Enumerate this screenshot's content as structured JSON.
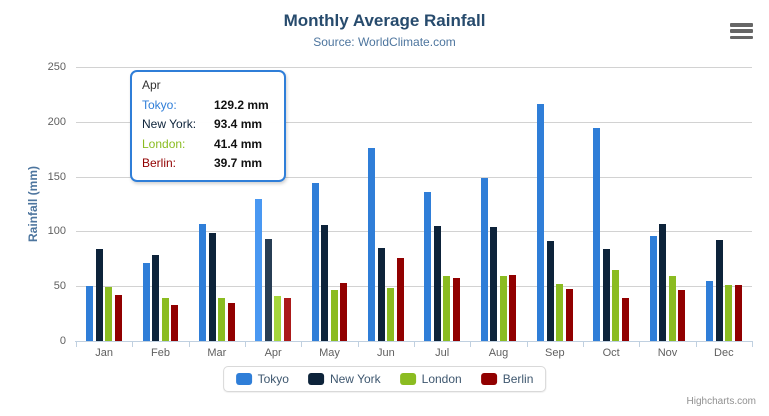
{
  "header": {
    "title": "Monthly Average Rainfall",
    "subtitle": "Source: WorldClimate.com"
  },
  "credits": "Highcharts.com",
  "context_menu_icon": "hamburger-icon",
  "colors": {
    "title": "#274b6d",
    "subtitle": "#4d759e",
    "axis_labels": "#606060",
    "gridline": "#d2d2d2",
    "axis_line": "#c0d0e0",
    "legend_text": "#3E576F",
    "tooltip_border": "#2f7ed8"
  },
  "chart_data": {
    "type": "bar",
    "title": "Monthly Average Rainfall",
    "subtitle": "Source: WorldClimate.com",
    "xlabel": "",
    "ylabel": "Rainfall (mm)",
    "ylim": [
      0,
      250
    ],
    "ytick_interval": 50,
    "yticks": [
      "0",
      "50",
      "100",
      "150",
      "200",
      "250"
    ],
    "grid": true,
    "legend_position": "bottom",
    "categories": [
      "Jan",
      "Feb",
      "Mar",
      "Apr",
      "May",
      "Jun",
      "Jul",
      "Aug",
      "Sep",
      "Oct",
      "Nov",
      "Dec"
    ],
    "hovered_category": "Apr",
    "hover_index": 3,
    "series": [
      {
        "name": "Tokyo",
        "color": "#2f7ed8",
        "hover_color": "#4998f2",
        "values": [
          49.9,
          71.5,
          106.4,
          129.2,
          144.0,
          176.0,
          135.6,
          148.5,
          216.4,
          194.1,
          95.6,
          54.4
        ]
      },
      {
        "name": "New York",
        "color": "#0d233a",
        "hover_color": "#273d54",
        "values": [
          83.6,
          78.8,
          98.5,
          93.4,
          106.0,
          84.5,
          105.0,
          104.3,
          91.2,
          83.5,
          106.6,
          92.3
        ]
      },
      {
        "name": "London",
        "color": "#8bbc21",
        "hover_color": "#a5d63b",
        "values": [
          48.9,
          38.8,
          39.3,
          41.4,
          47.0,
          48.3,
          59.0,
          59.6,
          52.4,
          65.2,
          59.3,
          51.2
        ]
      },
      {
        "name": "Berlin",
        "color": "#910000",
        "hover_color": "#ab1a1a",
        "values": [
          42.4,
          33.2,
          34.5,
          39.7,
          52.6,
          75.5,
          57.4,
          60.4,
          47.6,
          39.1,
          46.8,
          51.1
        ]
      }
    ]
  },
  "tooltip": {
    "category": "Apr",
    "rows": [
      {
        "series": "Tokyo",
        "label": "Tokyo:",
        "value": "129.2 mm"
      },
      {
        "series": "New York",
        "label": "New York:",
        "value": "93.4 mm"
      },
      {
        "series": "London",
        "label": "London:",
        "value": "41.4 mm"
      },
      {
        "series": "Berlin",
        "label": "Berlin:",
        "value": "39.7 mm"
      }
    ]
  }
}
